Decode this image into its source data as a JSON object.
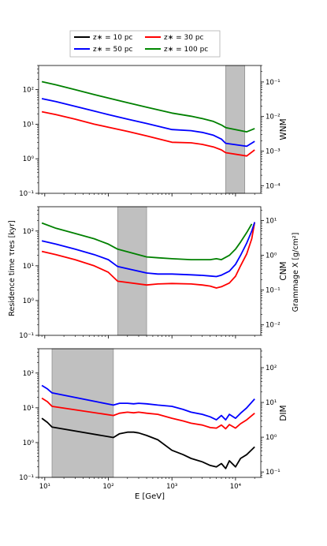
{
  "legend": [
    {
      "label": "z∗ = 10 pc",
      "color": "#000000"
    },
    {
      "label": "z∗ = 30 pc",
      "color": "#ff0000"
    },
    {
      "label": "z∗ = 50 pc",
      "color": "#0000ff"
    },
    {
      "label": "z∗ = 100 pc",
      "color": "#008000"
    }
  ],
  "xlabel": "E [GeV]",
  "ylabel_left": "Residence time τres [kyr]",
  "ylabel_right": "Grammage X [g/cm²]",
  "chart_data": [
    {
      "type": "line",
      "panel": "WNM",
      "xscale": "log",
      "yscale": "log",
      "xlim": [
        8,
        25000
      ],
      "ylim": [
        0.1,
        500
      ],
      "yticks_left": [
        "10⁻¹",
        "10⁰",
        "10¹",
        "10²"
      ],
      "yticks_right": [
        "10⁻⁴",
        "10⁻³",
        "10⁻²",
        "10⁻¹"
      ],
      "right_ylim": [
        6e-05,
        0.3
      ],
      "shaded_region": [
        7000,
        14000
      ],
      "series": [
        {
          "name": "z∗ = 30 pc",
          "color": "#ff0000",
          "x": [
            9,
            15,
            30,
            60,
            100,
            200,
            400,
            1000,
            2000,
            3000,
            4500,
            6000,
            7000,
            15000,
            20000
          ],
          "y": [
            23,
            19,
            14,
            10,
            8.2,
            6.2,
            4.6,
            3.0,
            2.9,
            2.6,
            2.2,
            1.8,
            1.5,
            1.2,
            1.8
          ]
        },
        {
          "name": "z∗ = 50 pc",
          "color": "#0000ff",
          "x": [
            9,
            15,
            30,
            60,
            100,
            200,
            400,
            1000,
            2000,
            3000,
            4500,
            6000,
            7000,
            15000,
            20000
          ],
          "y": [
            55,
            45,
            33,
            24,
            19,
            14,
            10.5,
            7.0,
            6.5,
            5.8,
            4.8,
            3.7,
            2.8,
            2.3,
            3.2
          ]
        },
        {
          "name": "z∗ = 100 pc",
          "color": "#008000",
          "x": [
            9,
            15,
            30,
            60,
            100,
            200,
            400,
            1000,
            2000,
            3000,
            4500,
            6000,
            7000,
            15000,
            20000
          ],
          "y": [
            170,
            138,
            100,
            72,
            57,
            42,
            31,
            21,
            17,
            14.5,
            12,
            9.5,
            8,
            6,
            7.5
          ]
        }
      ]
    },
    {
      "type": "line",
      "panel": "CNM",
      "xscale": "log",
      "yscale": "log",
      "xlim": [
        8,
        25000
      ],
      "ylim": [
        0.1,
        500
      ],
      "yticks_left": [
        "10⁻¹",
        "10⁰",
        "10¹",
        "10²"
      ],
      "yticks_right": [
        "10⁻²",
        "10⁻¹",
        "10⁰",
        "10¹"
      ],
      "right_ylim": [
        0.005,
        25
      ],
      "shaded_region": [
        140,
        400
      ],
      "series": [
        {
          "name": "z∗ = 30 pc",
          "color": "#ff0000",
          "x": [
            9,
            15,
            30,
            60,
            100,
            140,
            400,
            600,
            1000,
            2000,
            3000,
            4000,
            5000,
            6000,
            8000,
            10000,
            12000,
            15000,
            18000,
            20000
          ],
          "y": [
            26,
            21,
            15,
            10,
            6.5,
            3.6,
            2.8,
            3.0,
            3.1,
            3.0,
            2.8,
            2.6,
            2.3,
            2.5,
            3.2,
            5,
            10,
            22,
            60,
            180
          ]
        },
        {
          "name": "z∗ = 50 pc",
          "color": "#0000ff",
          "x": [
            9,
            15,
            30,
            60,
            100,
            140,
            400,
            600,
            1000,
            2000,
            3000,
            4000,
            5000,
            6000,
            8000,
            10000,
            12000,
            15000,
            18000,
            20000
          ],
          "y": [
            52,
            42,
            30,
            21,
            15,
            9.5,
            6.2,
            5.8,
            5.8,
            5.5,
            5.3,
            5.1,
            4.9,
            5.4,
            7,
            11,
            20,
            45,
            100,
            180
          ]
        },
        {
          "name": "z∗ = 100 pc",
          "color": "#008000",
          "x": [
            9,
            15,
            30,
            60,
            100,
            140,
            400,
            600,
            1000,
            2000,
            3000,
            4000,
            5000,
            6000,
            8000,
            10000,
            12000,
            15000,
            18000
          ],
          "y": [
            170,
            120,
            85,
            60,
            42,
            30,
            18,
            17,
            16,
            15,
            15,
            15,
            16,
            15,
            20,
            30,
            48,
            90,
            160
          ]
        }
      ]
    },
    {
      "type": "line",
      "panel": "DIM",
      "xscale": "log",
      "yscale": "log",
      "xlim": [
        8,
        25000
      ],
      "ylim": [
        0.1,
        500
      ],
      "yticks_left": [
        "10⁻¹",
        "10⁰",
        "10¹",
        "10²"
      ],
      "yticks_right": [
        "10⁻¹",
        "10⁰",
        "10¹",
        "10²"
      ],
      "right_ylim": [
        0.07,
        350
      ],
      "shaded_region": [
        13,
        120
      ],
      "series": [
        {
          "name": "z∗ = 10 pc",
          "color": "#000000",
          "x": [
            9,
            11,
            13,
            120,
            150,
            200,
            250,
            300,
            400,
            600,
            1000,
            1500,
            2000,
            3000,
            4000,
            5000,
            6000,
            7000,
            8000,
            10000,
            12000,
            15000,
            20000
          ],
          "y": [
            5,
            3.8,
            2.8,
            1.4,
            1.8,
            2.0,
            2.0,
            1.9,
            1.6,
            1.2,
            0.6,
            0.45,
            0.35,
            0.28,
            0.22,
            0.2,
            0.25,
            0.18,
            0.3,
            0.2,
            0.35,
            0.45,
            0.75
          ]
        },
        {
          "name": "z∗ = 30 pc",
          "color": "#ff0000",
          "x": [
            9,
            11,
            13,
            120,
            150,
            200,
            250,
            300,
            400,
            600,
            1000,
            1500,
            2000,
            3000,
            4000,
            5000,
            6000,
            7000,
            8000,
            10000,
            12000,
            15000,
            20000
          ],
          "y": [
            19,
            15,
            11,
            6,
            7,
            7.5,
            7.2,
            7.5,
            7,
            6.5,
            5,
            4.2,
            3.6,
            3.2,
            2.7,
            2.6,
            3.2,
            2.5,
            3.3,
            2.6,
            3.5,
            4.5,
            7
          ]
        },
        {
          "name": "z∗ = 50 pc",
          "color": "#0000ff",
          "x": [
            9,
            11,
            13,
            120,
            150,
            200,
            250,
            300,
            400,
            600,
            1000,
            1500,
            2000,
            3000,
            4000,
            5000,
            6000,
            7000,
            8000,
            10000,
            12000,
            15000,
            20000
          ],
          "y": [
            44,
            35,
            27,
            12,
            13.5,
            13.5,
            13,
            13.5,
            13,
            12,
            11,
            9,
            7.5,
            6.5,
            5.5,
            4.5,
            6,
            4.5,
            6.5,
            5,
            7,
            10,
            18
          ]
        }
      ]
    }
  ]
}
